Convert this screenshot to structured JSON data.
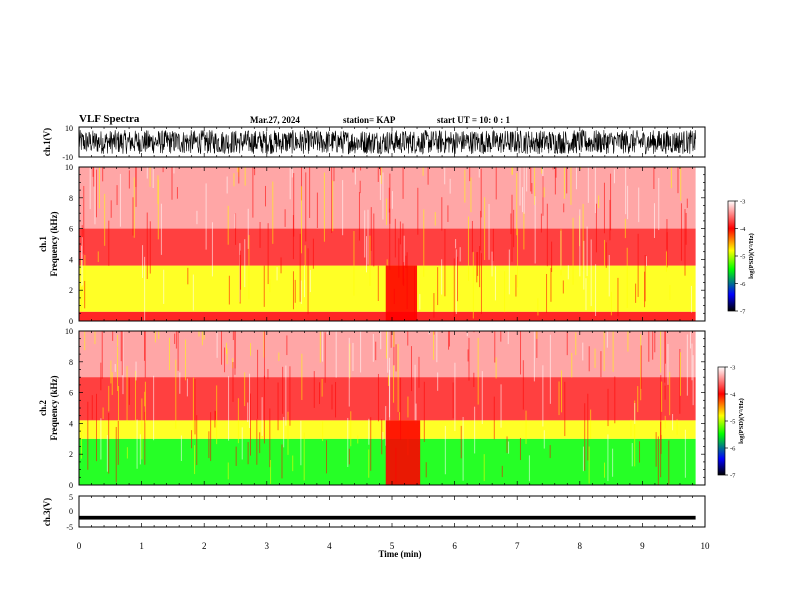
{
  "header": {
    "title": "VLF Spectra",
    "date": "Mar.27, 2024",
    "station": "station= KAP",
    "start": "start  UT =   10: 0  : 1"
  },
  "chart_data": [
    {
      "type": "line",
      "panel": "ch1-waveform",
      "ylabel": "ch.1(V)",
      "xlim": [
        0,
        10
      ],
      "ylim": [
        -10,
        10
      ],
      "y_ticks": [
        "10",
        "-10"
      ],
      "description_values": {
        "amplitude_range": [
          -8,
          8
        ]
      }
    },
    {
      "type": "heatmap",
      "panel": "ch1-spectrogram",
      "ylabel": "ch.1\nFrequency (kHz)",
      "ylabel_lines": [
        "ch.1",
        "Frequency  (kHz)"
      ],
      "xlim": [
        0,
        10
      ],
      "ylim": [
        0,
        10
      ],
      "data_end_min": 9.85,
      "y_ticks": [
        "0",
        "2",
        "4",
        "6",
        "8",
        "10"
      ],
      "bands": [
        {
          "fmin": 0.0,
          "fmax": 0.6,
          "level": "red"
        },
        {
          "fmin": 0.6,
          "fmax": 3.6,
          "level": "yellow"
        },
        {
          "fmin": 3.6,
          "fmax": 6.0,
          "level": "red-dense"
        },
        {
          "fmin": 6.0,
          "fmax": 10.0,
          "level": "red-sparse"
        }
      ],
      "quiet_interval_min": [
        4.9,
        5.4
      ],
      "colorbar": {
        "label": "log(PSD)(V²/Hz)",
        "ticks": [
          "-3",
          "-4",
          "-5",
          "-6",
          "-7"
        ],
        "range": [
          -7,
          -3
        ]
      }
    },
    {
      "type": "heatmap",
      "panel": "ch2-spectrogram",
      "ylabel": "ch.2\nFrequency (kHz)",
      "ylabel_lines": [
        "ch.2",
        "Frequency  (kHz)"
      ],
      "xlim": [
        0,
        10
      ],
      "ylim": [
        0,
        10
      ],
      "data_end_min": 9.85,
      "y_ticks": [
        "0",
        "2",
        "4",
        "6",
        "8",
        "10"
      ],
      "bands": [
        {
          "fmin": 0.0,
          "fmax": 3.0,
          "level": "green"
        },
        {
          "fmin": 3.0,
          "fmax": 4.2,
          "level": "yellow"
        },
        {
          "fmin": 4.2,
          "fmax": 7.0,
          "level": "red-dense"
        },
        {
          "fmin": 7.0,
          "fmax": 10.0,
          "level": "red-sparse"
        }
      ],
      "quiet_interval_min": [
        4.9,
        5.45
      ],
      "colorbar": {
        "label": "log(PSD)(V²/Hz)",
        "ticks": [
          "-3",
          "-4",
          "-5",
          "-6",
          "-7"
        ],
        "range": [
          -7,
          -3
        ]
      }
    },
    {
      "type": "line",
      "panel": "ch3-waveform",
      "ylabel": "ch.3(V)",
      "xlim": [
        0,
        10
      ],
      "ylim": [
        -5,
        5
      ],
      "y_ticks": [
        "5",
        "0",
        "-5"
      ],
      "x_ticks": [
        "0",
        "1",
        "2",
        "3",
        "4",
        "5",
        "6",
        "7",
        "8",
        "9",
        "10"
      ],
      "xlabel": "Time  (min)",
      "description_values": {
        "level": -2,
        "thickness": 0.6
      }
    }
  ],
  "colors": {
    "red": "#ff0000",
    "yellow": "#ffff00",
    "green": "#00ff00",
    "cbar_stops": [
      "#ffffff",
      "#ff0000",
      "#ffff00",
      "#00ff00",
      "#0000ff",
      "#000000"
    ]
  }
}
